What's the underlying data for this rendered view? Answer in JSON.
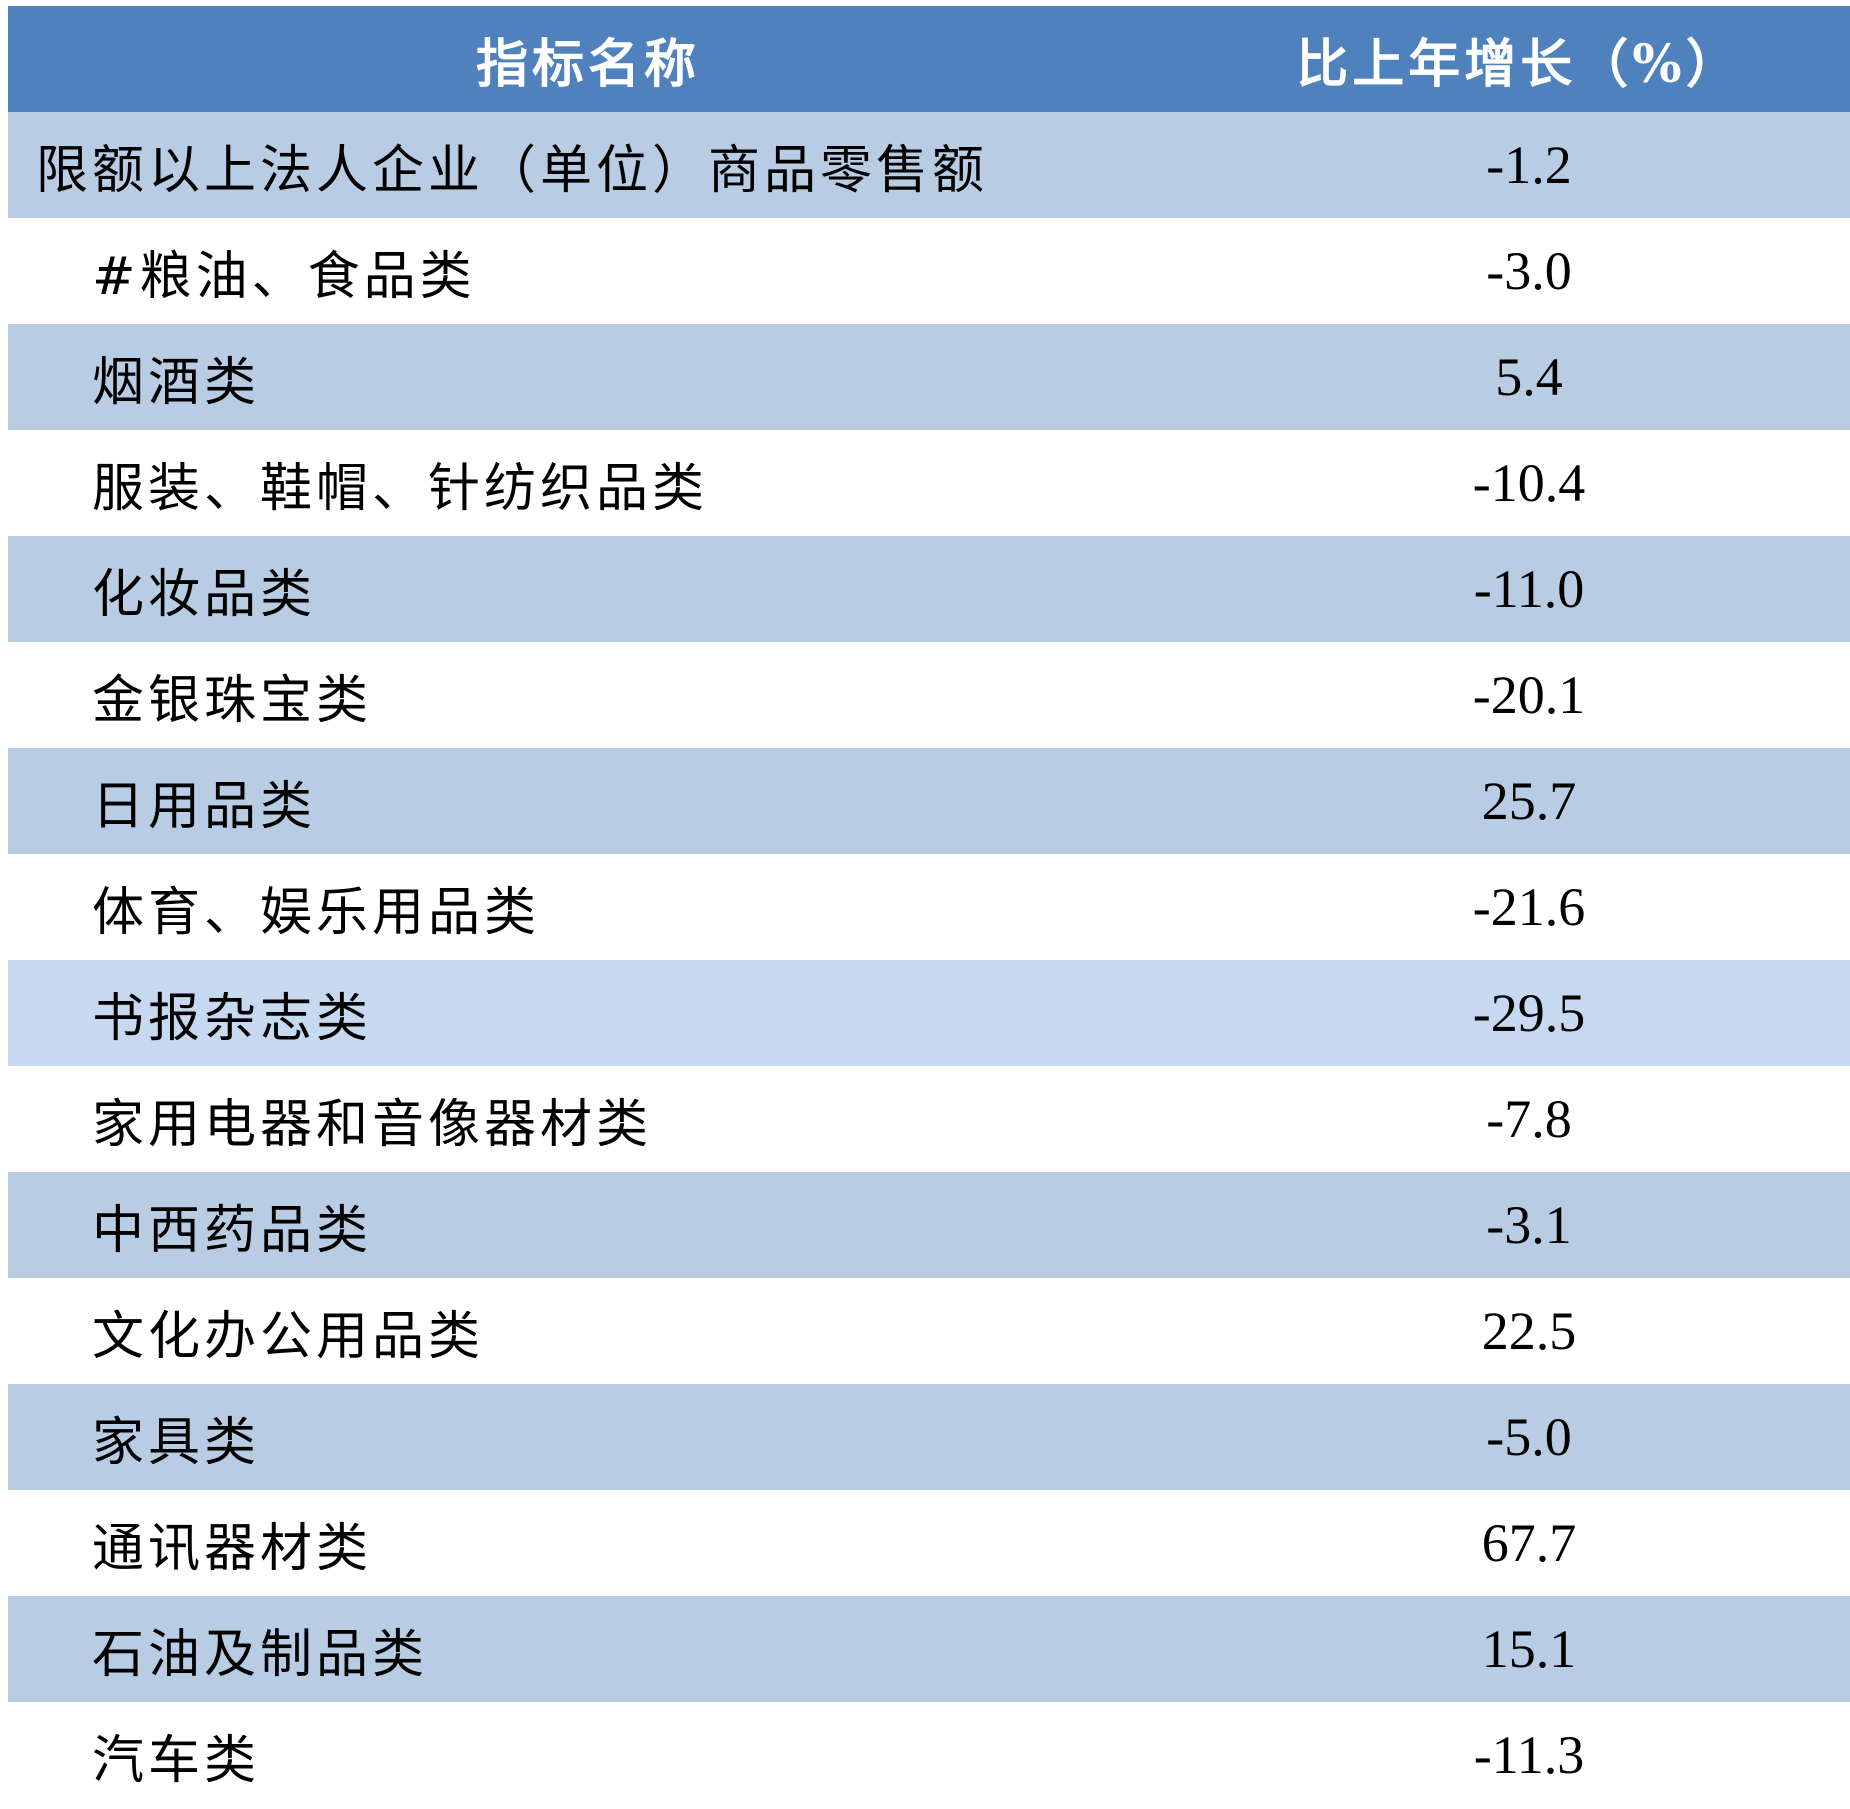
{
  "table": {
    "header": [
      "指标名称",
      "比上年增长（%）"
    ],
    "rows": [
      [
        "限额以上法人企业（单位）商品零售额",
        "-1.2"
      ],
      [
        "#粮油、食品类",
        "-3.0"
      ],
      [
        "烟酒类",
        "5.4"
      ],
      [
        "服装、鞋帽、针纺织品类",
        "-10.4"
      ],
      [
        "化妆品类",
        "-11.0"
      ],
      [
        "金银珠宝类",
        "-20.1"
      ],
      [
        "日用品类",
        "25.7"
      ],
      [
        "体育、娱乐用品类",
        "-21.6"
      ],
      [
        "书报杂志类",
        "-29.5"
      ],
      [
        "家用电器和音像器材类",
        "-7.8"
      ],
      [
        "中西药品类",
        "-3.1"
      ],
      [
        "文化办公用品类",
        "22.5"
      ],
      [
        "家具类",
        "-5.0"
      ],
      [
        "通讯器材类",
        "67.7"
      ],
      [
        "石油及制品类",
        "15.1"
      ],
      [
        "汽车类",
        "-11.3"
      ]
    ]
  }
}
